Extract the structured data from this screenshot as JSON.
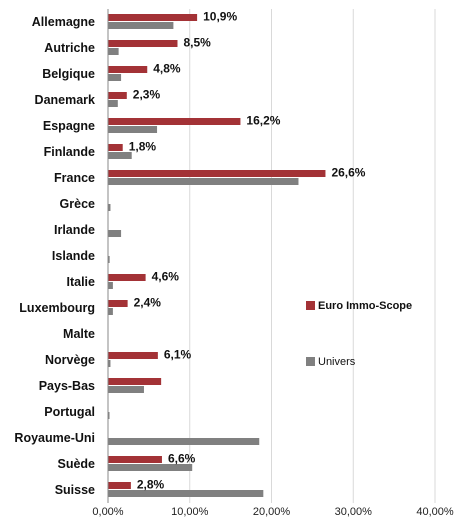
{
  "chart_data": {
    "type": "bar",
    "orientation": "horizontal",
    "categories": [
      "Allemagne",
      "Autriche",
      "Belgique",
      "Danemark",
      "Espagne",
      "Finlande",
      "France",
      "Grèce",
      "Irlande",
      "Islande",
      "Italie",
      "Luxembourg",
      "Malte",
      "Norvège",
      "Pays-Bas",
      "Portugal",
      "Royaume-Uni",
      "Suède",
      "Suisse"
    ],
    "series": [
      {
        "name": "Euro Immo-Scope",
        "color": "#A33236",
        "values": [
          10.9,
          8.5,
          4.8,
          2.3,
          16.2,
          1.8,
          26.6,
          0,
          0,
          0,
          4.6,
          2.4,
          0,
          6.1,
          6.5,
          0,
          0,
          6.6,
          2.8
        ],
        "labels": [
          "10,9%",
          "8,5%",
          "4,8%",
          "2,3%",
          "16,2%",
          "1,8%",
          "26,6%",
          "",
          "",
          "",
          "4,6%",
          "2,4%",
          "",
          "6,1%",
          "",
          "",
          "",
          "6,6%",
          "2,8%"
        ]
      },
      {
        "name": "Univers",
        "color": "#808080",
        "values": [
          8.0,
          1.3,
          1.6,
          1.2,
          6.0,
          2.9,
          23.3,
          0.3,
          1.6,
          0.2,
          0.6,
          0.6,
          0,
          0.3,
          4.4,
          0.1,
          18.5,
          10.3,
          19.0
        ],
        "labels": []
      }
    ],
    "xlim": [
      0,
      40
    ],
    "xticks": [
      "0,00%",
      "10,00%",
      "20,00%",
      "30,00%",
      "40,00%"
    ],
    "grid": true,
    "legend": "right"
  }
}
